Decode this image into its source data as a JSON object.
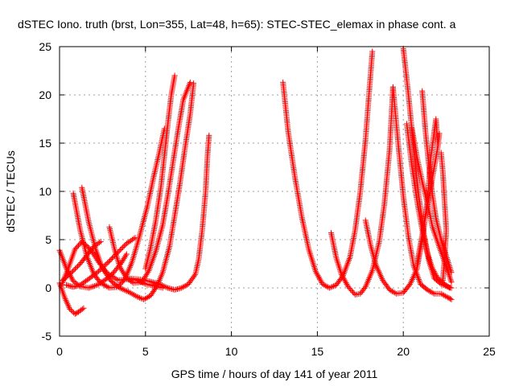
{
  "chart_data": {
    "type": "scatter",
    "title": "dSTEC Iono. truth (brst, Lon=355, Lat=48, h=65): STEC-STEC_elemax in phase cont. a",
    "xlabel": "GPS time / hours of day 141 of year 2011",
    "ylabel": "dSTEC  / TECUs",
    "xlim": [
      0,
      25
    ],
    "ylim": [
      -5,
      25
    ],
    "xticks": [
      0,
      5,
      10,
      15,
      20,
      25
    ],
    "yticks": [
      -5,
      0,
      5,
      10,
      15,
      20,
      25
    ],
    "grid": true,
    "marker": "+",
    "color": "#ff0000",
    "series": [
      {
        "points": [
          [
            0.0,
            3.9
          ],
          [
            0.4,
            2.0
          ],
          [
            0.8,
            0.7
          ],
          [
            1.2,
            0.15
          ],
          [
            1.7,
            0.0
          ],
          [
            2.2,
            0.3
          ],
          [
            2.7,
            0.9
          ],
          [
            3.1,
            1.5
          ],
          [
            3.6,
            2.6
          ],
          [
            3.9,
            3.5
          ]
        ]
      },
      {
        "points": [
          [
            0.0,
            0.5
          ],
          [
            0.3,
            -1.0
          ],
          [
            0.6,
            -2.2
          ],
          [
            0.9,
            -2.7
          ],
          [
            1.1,
            -2.5
          ],
          [
            1.4,
            -2.1
          ]
        ]
      },
      {
        "points": [
          [
            0.1,
            0.2
          ],
          [
            0.5,
            2.0
          ],
          [
            0.9,
            4.0
          ],
          [
            1.3,
            4.8
          ],
          [
            1.8,
            4.0
          ],
          [
            2.3,
            2.6
          ],
          [
            2.8,
            1.5
          ],
          [
            3.4,
            0.8
          ],
          [
            4.0,
            0.9
          ],
          [
            4.5,
            0.8
          ],
          [
            5.0,
            0.4
          ],
          [
            5.5,
            0.2
          ],
          [
            6.0,
            0.0
          ]
        ]
      },
      {
        "points": [
          [
            0.8,
            9.8
          ],
          [
            1.2,
            6.0
          ],
          [
            1.6,
            3.2
          ],
          [
            2.0,
            1.4
          ],
          [
            2.4,
            0.5
          ],
          [
            2.9,
            0.0
          ],
          [
            3.4,
            0.1
          ],
          [
            3.8,
            0.9
          ],
          [
            4.2,
            2.6
          ],
          [
            4.6,
            5.0
          ],
          [
            5.1,
            8.4
          ],
          [
            5.5,
            11.7
          ],
          [
            5.8,
            14.0
          ],
          [
            6.1,
            16.5
          ]
        ]
      },
      {
        "points": [
          [
            1.3,
            10.4
          ],
          [
            1.7,
            6.8
          ],
          [
            2.1,
            4.0
          ],
          [
            2.5,
            2.0
          ],
          [
            3.0,
            0.7
          ],
          [
            3.5,
            0.0
          ],
          [
            4.0,
            -0.4
          ],
          [
            4.5,
            -0.9
          ],
          [
            4.9,
            -1.2
          ],
          [
            5.3,
            -0.8
          ],
          [
            5.7,
            0.3
          ],
          [
            6.0,
            1.6
          ],
          [
            6.4,
            4.3
          ],
          [
            6.7,
            7.5
          ],
          [
            7.0,
            10.8
          ],
          [
            7.3,
            14.5
          ],
          [
            7.6,
            18.0
          ],
          [
            7.8,
            21.2
          ]
        ]
      },
      {
        "points": [
          [
            0.2,
            0.8
          ],
          [
            0.7,
            1.6
          ],
          [
            1.2,
            2.5
          ],
          [
            1.6,
            3.4
          ],
          [
            2.0,
            4.3
          ],
          [
            2.4,
            4.8
          ]
        ]
      },
      {
        "points": [
          [
            0.4,
            0.3
          ],
          [
            0.8,
            0.1
          ],
          [
            1.2,
            0.3
          ],
          [
            1.6,
            0.8
          ],
          [
            2.2,
            1.6
          ],
          [
            2.8,
            2.6
          ],
          [
            3.4,
            3.7
          ],
          [
            3.9,
            4.6
          ],
          [
            4.4,
            5.2
          ]
        ]
      },
      {
        "points": [
          [
            2.9,
            6.3
          ],
          [
            3.2,
            4.0
          ],
          [
            3.5,
            2.2
          ],
          [
            3.9,
            1.0
          ],
          [
            4.3,
            0.5
          ],
          [
            4.8,
            0.6
          ],
          [
            5.2,
            1.8
          ],
          [
            5.6,
            3.8
          ],
          [
            6.0,
            6.5
          ],
          [
            6.3,
            9.6
          ],
          [
            6.6,
            13.0
          ],
          [
            6.9,
            16.4
          ],
          [
            7.2,
            19.5
          ],
          [
            7.6,
            21.3
          ]
        ]
      },
      {
        "points": [
          [
            4.0,
            1.0
          ],
          [
            4.6,
            0.9
          ],
          [
            5.2,
            0.7
          ],
          [
            5.8,
            0.4
          ],
          [
            6.3,
            0.0
          ],
          [
            6.7,
            -0.2
          ],
          [
            7.1,
            0.0
          ],
          [
            7.5,
            0.4
          ],
          [
            7.9,
            1.4
          ],
          [
            8.1,
            3.0
          ],
          [
            8.3,
            6.0
          ],
          [
            8.5,
            10.0
          ],
          [
            8.6,
            13.5
          ],
          [
            8.7,
            15.8
          ]
        ]
      },
      {
        "points": [
          [
            5.0,
            2.0
          ],
          [
            5.3,
            4.2
          ],
          [
            5.6,
            7.0
          ],
          [
            5.9,
            10.5
          ],
          [
            6.1,
            13.7
          ],
          [
            6.3,
            17.0
          ],
          [
            6.5,
            20.0
          ],
          [
            6.7,
            22.0
          ]
        ]
      },
      {
        "points": [
          [
            13.0,
            21.3
          ],
          [
            13.3,
            16.2
          ],
          [
            13.7,
            11.4
          ],
          [
            14.1,
            7.3
          ],
          [
            14.5,
            4.0
          ],
          [
            14.9,
            1.7
          ],
          [
            15.3,
            0.4
          ],
          [
            15.7,
            0.0
          ],
          [
            16.1,
            0.3
          ],
          [
            16.5,
            1.3
          ],
          [
            16.9,
            3.2
          ],
          [
            17.2,
            6.0
          ],
          [
            17.5,
            10.0
          ],
          [
            17.8,
            15.3
          ],
          [
            18.0,
            20.0
          ],
          [
            18.2,
            24.5
          ]
        ]
      },
      {
        "points": [
          [
            15.8,
            5.7
          ],
          [
            16.1,
            3.1
          ],
          [
            16.4,
            1.4
          ],
          [
            16.8,
            0.1
          ],
          [
            17.2,
            -0.7
          ],
          [
            17.5,
            -0.6
          ],
          [
            17.8,
            0.1
          ],
          [
            18.2,
            1.8
          ],
          [
            18.6,
            4.8
          ],
          [
            18.9,
            8.7
          ],
          [
            19.2,
            14.3
          ],
          [
            19.4,
            20.8
          ]
        ]
      },
      {
        "points": [
          [
            17.8,
            7.0
          ],
          [
            18.1,
            4.4
          ],
          [
            18.4,
            2.4
          ],
          [
            18.8,
            0.8
          ],
          [
            19.2,
            -0.2
          ],
          [
            19.6,
            -0.6
          ],
          [
            20.0,
            -0.5
          ],
          [
            20.4,
            0.4
          ],
          [
            20.8,
            2.0
          ],
          [
            21.1,
            5.0
          ],
          [
            21.4,
            9.0
          ],
          [
            21.6,
            13.5
          ],
          [
            21.9,
            17.5
          ],
          [
            22.0,
            15.0
          ]
        ]
      },
      {
        "points": [
          [
            19.4,
            20.8
          ],
          [
            19.7,
            15.0
          ],
          [
            20.0,
            9.5
          ],
          [
            20.3,
            5.3
          ],
          [
            20.6,
            2.3
          ],
          [
            21.0,
            0.4
          ],
          [
            21.4,
            -0.2
          ],
          [
            21.8,
            -0.6
          ],
          [
            22.2,
            -0.6
          ],
          [
            22.6,
            -1.0
          ],
          [
            22.8,
            -1.2
          ]
        ]
      },
      {
        "points": [
          [
            20.0,
            24.8
          ],
          [
            20.3,
            20.0
          ],
          [
            20.6,
            14.5
          ],
          [
            20.9,
            9.5
          ],
          [
            21.2,
            5.6
          ],
          [
            21.5,
            2.7
          ],
          [
            21.8,
            1.0
          ],
          [
            22.2,
            0.4
          ],
          [
            22.6,
            0.1
          ],
          [
            22.8,
            0.0
          ]
        ]
      },
      {
        "points": [
          [
            20.2,
            17.0
          ],
          [
            20.5,
            12.6
          ],
          [
            20.8,
            9.0
          ],
          [
            21.1,
            6.0
          ],
          [
            21.4,
            3.6
          ],
          [
            21.7,
            2.0
          ],
          [
            22.0,
            1.0
          ],
          [
            22.4,
            0.4
          ],
          [
            22.7,
            0.0
          ]
        ]
      },
      {
        "points": [
          [
            20.5,
            16.5
          ],
          [
            20.8,
            13.5
          ],
          [
            21.1,
            11.0
          ],
          [
            21.4,
            8.8
          ],
          [
            21.7,
            6.3
          ],
          [
            22.1,
            4.2
          ],
          [
            22.5,
            2.2
          ],
          [
            22.8,
            0.6
          ]
        ]
      },
      {
        "points": [
          [
            21.1,
            20.4
          ],
          [
            21.3,
            16.0
          ],
          [
            21.5,
            12.5
          ],
          [
            21.7,
            9.6
          ],
          [
            21.9,
            7.2
          ],
          [
            22.2,
            5.0
          ],
          [
            22.5,
            3.3
          ],
          [
            22.8,
            1.6
          ]
        ]
      },
      {
        "points": [
          [
            22.3,
            0.8
          ],
          [
            22.4,
            3.0
          ],
          [
            22.5,
            6.0
          ],
          [
            22.4,
            9.0
          ],
          [
            22.3,
            12.0
          ],
          [
            22.2,
            14.0
          ]
        ]
      },
      {
        "points": [
          [
            20.8,
            2.5
          ],
          [
            21.1,
            5.5
          ],
          [
            21.4,
            8.5
          ],
          [
            21.7,
            11.5
          ],
          [
            22.0,
            14.5
          ],
          [
            22.1,
            16.0
          ]
        ]
      }
    ]
  }
}
